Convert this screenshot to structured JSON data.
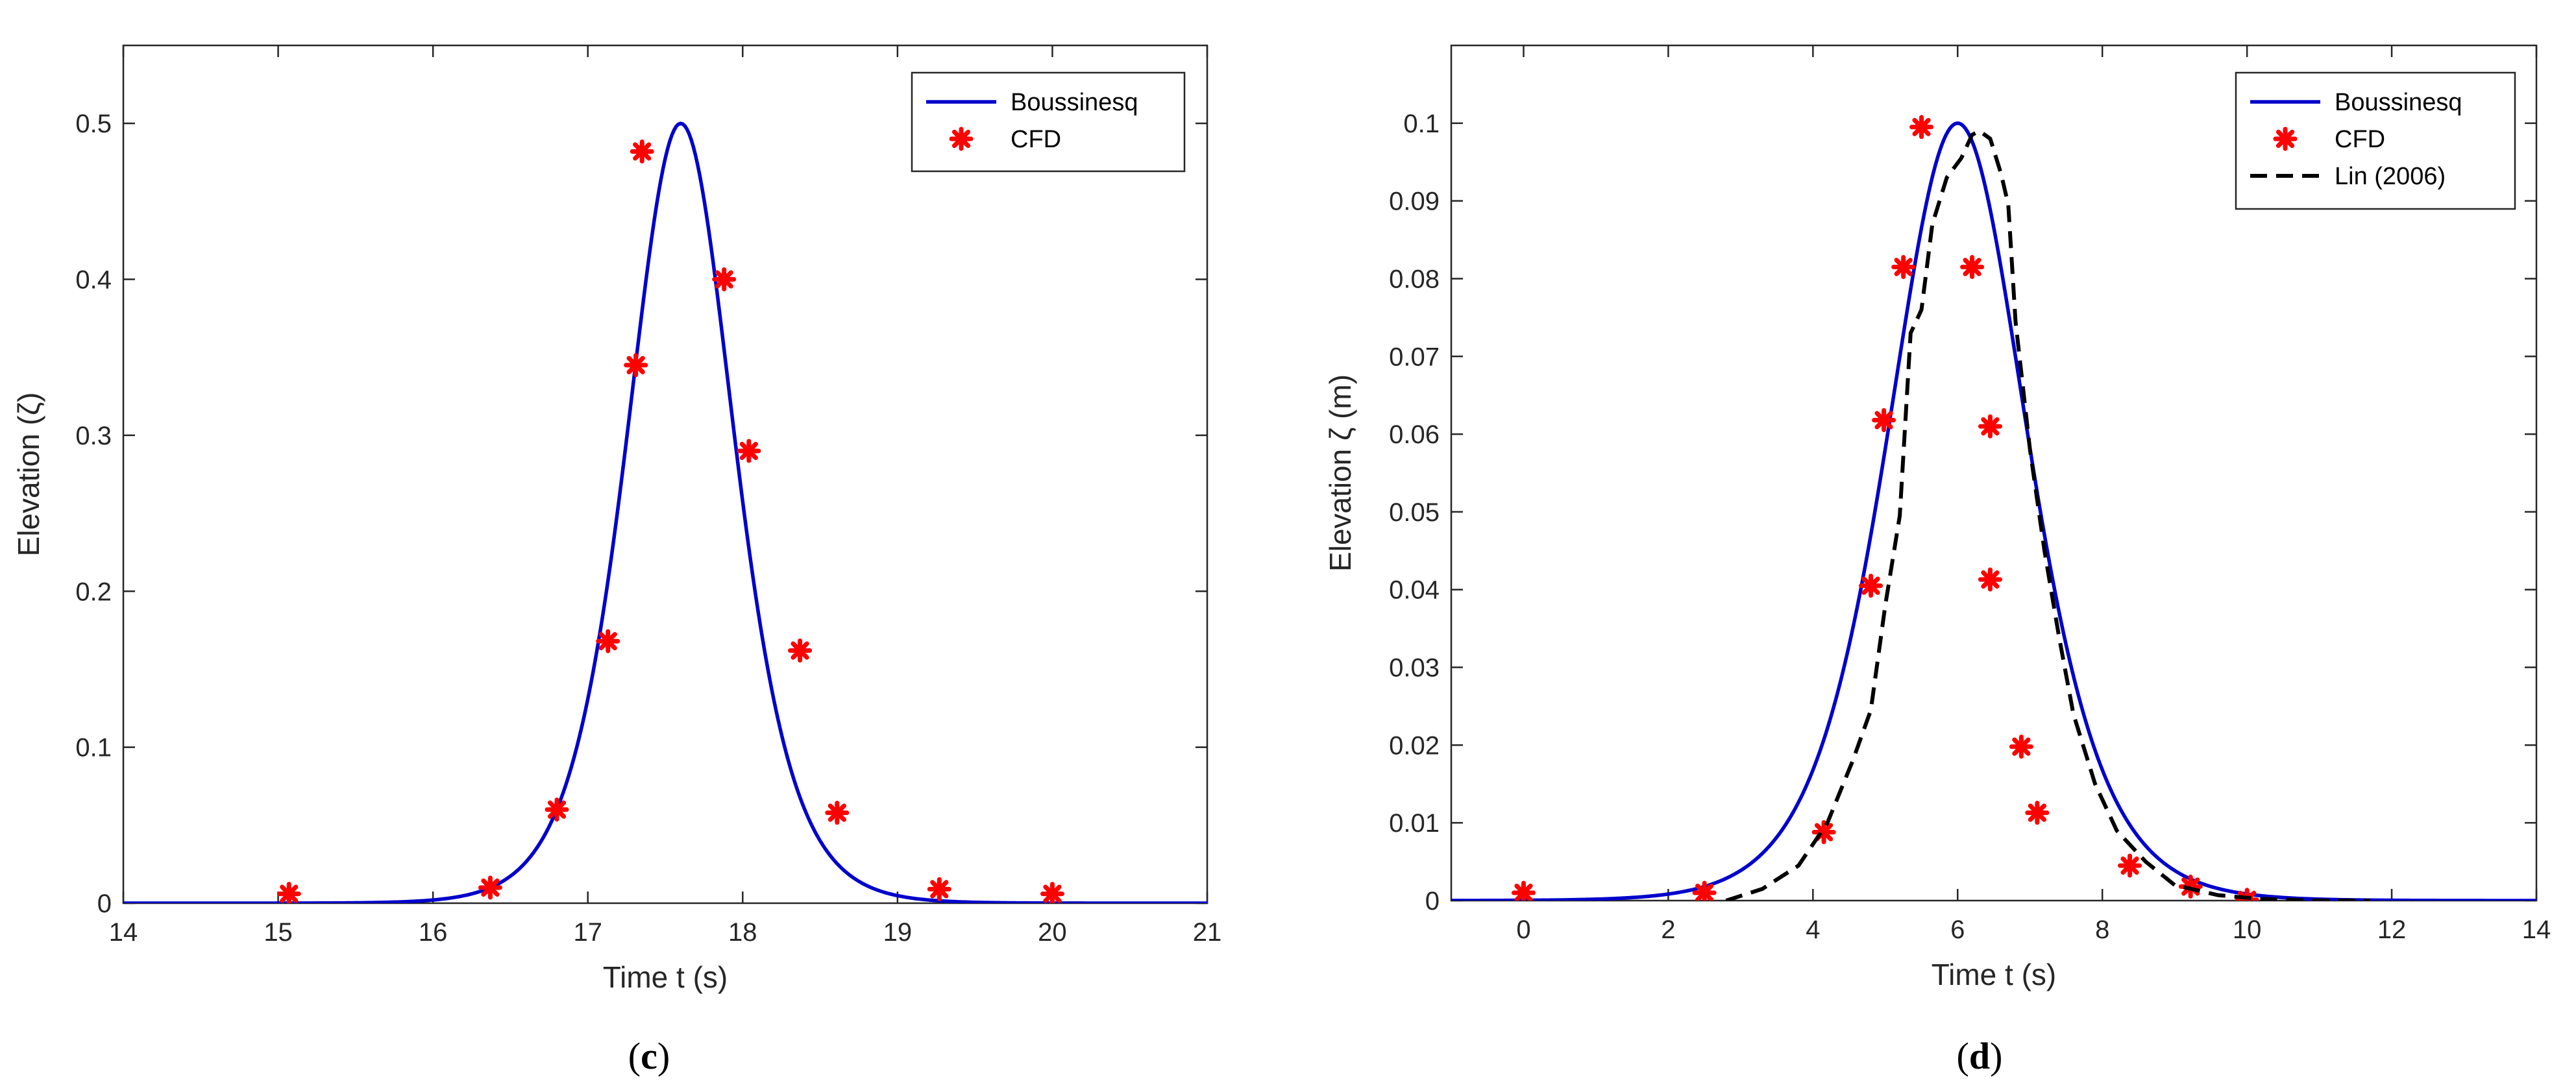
{
  "colors": {
    "boussinesq": "#0000cc",
    "cfd": "#ff0000",
    "lin": "#000000",
    "axis": "#262626"
  },
  "chart_data": [
    {
      "type": "line",
      "panel_label": "c",
      "panel_open": "(",
      "panel_close": ")",
      "xlabel": "Time t (s)",
      "ylabel": "Elevation (ζ)",
      "xlim": [
        14,
        21
      ],
      "ylim": [
        0,
        0.55
      ],
      "xticks": [
        14,
        15,
        16,
        17,
        18,
        19,
        20,
        21
      ],
      "xtick_labels": [
        "14",
        "15",
        "16",
        "17",
        "18",
        "19",
        "20",
        "21"
      ],
      "yticks": [
        0,
        0.1,
        0.2,
        0.3,
        0.4,
        0.5
      ],
      "ytick_labels": [
        "0",
        "0.1",
        "0.2",
        "0.3",
        "0.4",
        "0.5"
      ],
      "legend": [
        "Boussinesq",
        "CFD"
      ],
      "legend_position": "top-right",
      "boussinesq": {
        "amplitude": 0.5,
        "center": 17.6,
        "k": 2.15
      },
      "series": [
        {
          "name": "CFD",
          "x": [
            15.07,
            16.37,
            16.8,
            17.13,
            17.31,
            17.35,
            17.88,
            18.04,
            18.37,
            18.61,
            19.27,
            20.0
          ],
          "y": [
            0.006,
            0.01,
            0.06,
            0.168,
            0.345,
            0.482,
            0.4,
            0.29,
            0.162,
            0.058,
            0.009,
            0.006
          ]
        }
      ]
    },
    {
      "type": "line",
      "panel_label": "d",
      "panel_open": "(",
      "panel_close": ")",
      "xlabel": "Time t (s)",
      "ylabel": "Elevation ζ (m)",
      "xlim": [
        -1,
        14
      ],
      "ylim": [
        0,
        0.11
      ],
      "xticks": [
        0,
        2,
        4,
        6,
        8,
        10,
        12,
        14
      ],
      "xtick_labels": [
        "0",
        "2",
        "4",
        "6",
        "8",
        "10",
        "12",
        "14"
      ],
      "yticks": [
        0,
        0.01,
        0.02,
        0.03,
        0.04,
        0.05,
        0.06,
        0.07,
        0.08,
        0.09,
        0.1
      ],
      "ytick_labels": [
        "0",
        "0.01",
        "0.02",
        "0.03",
        "0.04",
        "0.05",
        "0.06",
        "0.07",
        "0.08",
        "0.09",
        "0.1"
      ],
      "legend": [
        "Boussinesq",
        "CFD",
        "Lin (2006)"
      ],
      "legend_position": "top-right",
      "boussinesq": {
        "amplitude": 0.1,
        "center": 6.0,
        "k": 0.77
      },
      "series": [
        {
          "name": "CFD",
          "x": [
            0.0,
            2.5,
            4.15,
            4.8,
            4.98,
            5.25,
            5.5,
            6.2,
            6.45,
            6.45,
            6.88,
            7.1,
            8.38,
            9.22,
            10.0
          ],
          "y": [
            0.001,
            0.001,
            0.0088,
            0.0405,
            0.0618,
            0.0815,
            0.0995,
            0.0815,
            0.061,
            0.0413,
            0.0198,
            0.0113,
            0.0045,
            0.0018,
            0.0001
          ]
        },
        {
          "name": "Lin (2006)",
          "x": [
            2.8,
            3.3,
            3.8,
            4.2,
            4.55,
            4.8,
            5.0,
            5.2,
            5.35,
            5.5,
            5.65,
            5.85,
            6.05,
            6.2,
            6.3,
            6.45,
            6.6,
            6.7,
            6.8,
            7.0,
            7.2,
            7.4,
            7.6,
            7.9,
            8.2,
            8.6,
            9.0,
            9.6,
            10.2,
            11.0,
            11.7
          ],
          "y": [
            0.0,
            0.0015,
            0.0045,
            0.01,
            0.018,
            0.0245,
            0.038,
            0.0495,
            0.073,
            0.076,
            0.087,
            0.093,
            0.0955,
            0.0985,
            0.099,
            0.098,
            0.0935,
            0.0895,
            0.0745,
            0.058,
            0.045,
            0.034,
            0.024,
            0.015,
            0.009,
            0.005,
            0.002,
            0.0007,
            0.0002,
            0.0,
            0.0
          ]
        }
      ]
    }
  ]
}
